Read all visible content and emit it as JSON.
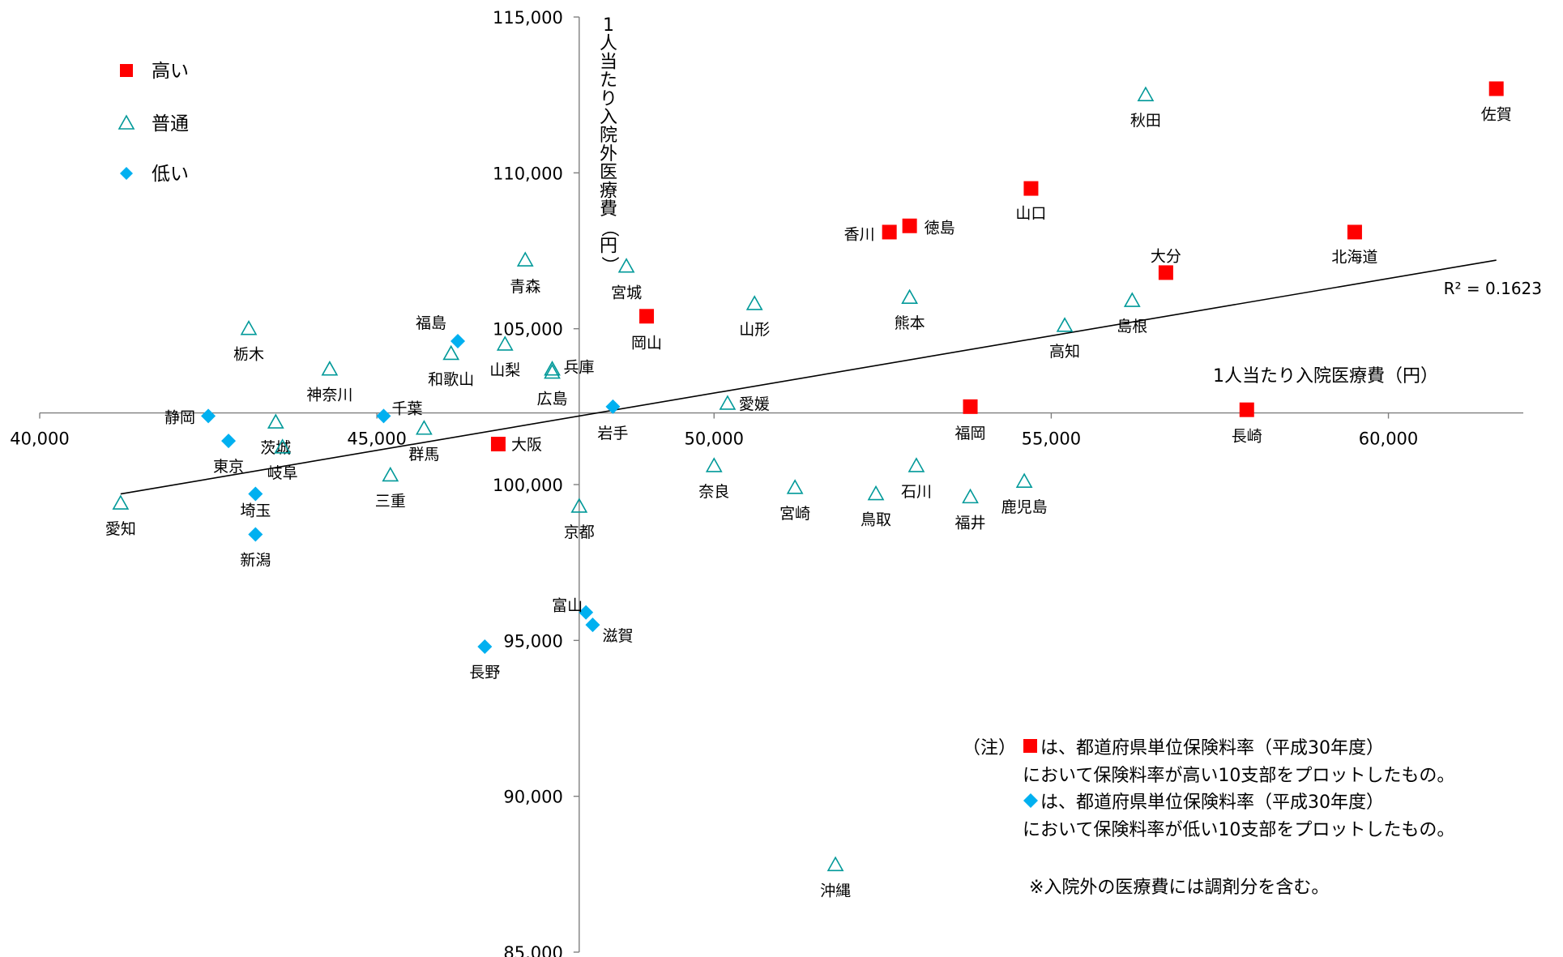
{
  "chart_data": {
    "type": "scatter",
    "title": "",
    "xlabel": "1人当たり入院医療費（円）",
    "ylabel": "1人当たり入院外医療費（円）",
    "xlim": [
      40000,
      62000
    ],
    "ylim": [
      85000,
      115000
    ],
    "x_axis_crosses_y": 102300,
    "y_axis_crosses_x": 48000,
    "x_ticks": [
      "40,000",
      "45,000",
      "50,000",
      "55,000",
      "60,000"
    ],
    "x_tick_values": [
      40000,
      45000,
      50000,
      55000,
      60000
    ],
    "y_ticks": [
      "85,000",
      "90,000",
      "95,000",
      "100,000",
      "105,000",
      "110,000",
      "115,000"
    ],
    "y_tick_values": [
      85000,
      90000,
      95000,
      100000,
      105000,
      110000,
      115000
    ],
    "legend": {
      "position": "top-left",
      "entries": [
        {
          "label": "高い",
          "marker": "square",
          "color": "#ff0000"
        },
        {
          "label": "普通",
          "marker": "triangle",
          "color": "#009999"
        },
        {
          "label": "低い",
          "marker": "diamond",
          "color": "#00b0f0"
        }
      ]
    },
    "trendline": {
      "x": [
        41200,
        61600
      ],
      "y": [
        99700,
        107200
      ],
      "r2_label": "R² = 0.1623"
    },
    "series": [
      {
        "name": "高い",
        "marker": "square",
        "color": "#ff0000",
        "points": [
          {
            "label": "佐賀",
            "x": 61600,
            "y": 112700
          },
          {
            "label": "山口",
            "x": 54700,
            "y": 109500
          },
          {
            "label": "徳島",
            "x": 52900,
            "y": 108300
          },
          {
            "label": "香川",
            "x": 52600,
            "y": 108100
          },
          {
            "label": "北海道",
            "x": 59500,
            "y": 108100
          },
          {
            "label": "大分",
            "x": 56700,
            "y": 106800
          },
          {
            "label": "岡山",
            "x": 49000,
            "y": 105400
          },
          {
            "label": "福岡",
            "x": 53800,
            "y": 102500
          },
          {
            "label": "長崎",
            "x": 57900,
            "y": 102400
          },
          {
            "label": "大阪",
            "x": 46800,
            "y": 101300
          }
        ]
      },
      {
        "name": "普通",
        "marker": "triangle",
        "color": "#009999",
        "points": [
          {
            "label": "秋田",
            "x": 56400,
            "y": 112500
          },
          {
            "label": "青森",
            "x": 47200,
            "y": 107200
          },
          {
            "label": "宮城",
            "x": 48700,
            "y": 107000
          },
          {
            "label": "山形",
            "x": 50600,
            "y": 105800
          },
          {
            "label": "熊本",
            "x": 52900,
            "y": 106000
          },
          {
            "label": "島根",
            "x": 56200,
            "y": 105900
          },
          {
            "label": "栃木",
            "x": 43100,
            "y": 105000
          },
          {
            "label": "高知",
            "x": 55200,
            "y": 105100
          },
          {
            "label": "山梨",
            "x": 46900,
            "y": 104500
          },
          {
            "label": "和歌山",
            "x": 46100,
            "y": 104200
          },
          {
            "label": "神奈川",
            "x": 44300,
            "y": 103700
          },
          {
            "label": "兵庫",
            "x": 47600,
            "y": 103700
          },
          {
            "label": "広島",
            "x": 47600,
            "y": 103600
          },
          {
            "label": "愛媛",
            "x": 50200,
            "y": 102600
          },
          {
            "label": "茨城",
            "x": 43500,
            "y": 102000
          },
          {
            "label": "群馬",
            "x": 45700,
            "y": 101800
          },
          {
            "label": "岐阜",
            "x": 43600,
            "y": 101200
          },
          {
            "label": "奈良",
            "x": 50000,
            "y": 100600
          },
          {
            "label": "石川",
            "x": 53000,
            "y": 100600
          },
          {
            "label": "三重",
            "x": 45200,
            "y": 100300
          },
          {
            "label": "鹿児島",
            "x": 54600,
            "y": 100100
          },
          {
            "label": "宮崎",
            "x": 51200,
            "y": 99900
          },
          {
            "label": "鳥取",
            "x": 52400,
            "y": 99700
          },
          {
            "label": "福井",
            "x": 53800,
            "y": 99600
          },
          {
            "label": "愛知",
            "x": 41200,
            "y": 99400
          },
          {
            "label": "京都",
            "x": 48000,
            "y": 99300
          },
          {
            "label": "沖縄",
            "x": 51800,
            "y": 87800
          }
        ]
      },
      {
        "name": "低い",
        "marker": "diamond",
        "color": "#00b0f0",
        "points": [
          {
            "label": "福島",
            "x": 46200,
            "y": 104600
          },
          {
            "label": "岩手",
            "x": 48500,
            "y": 102500
          },
          {
            "label": "千葉",
            "x": 45100,
            "y": 102200
          },
          {
            "label": "静岡",
            "x": 42500,
            "y": 102200
          },
          {
            "label": "東京",
            "x": 42800,
            "y": 101400
          },
          {
            "label": "埼玉",
            "x": 43200,
            "y": 99700
          },
          {
            "label": "新潟",
            "x": 43200,
            "y": 98400
          },
          {
            "label": "富山",
            "x": 48100,
            "y": 95900
          },
          {
            "label": "滋賀",
            "x": 48200,
            "y": 95500
          },
          {
            "label": "長野",
            "x": 46600,
            "y": 94800
          }
        ]
      }
    ]
  },
  "note": {
    "prefix": "（注）",
    "lines": [
      "は、都道府県単位保険料率（平成30年度）",
      "において保険料率が高い10支部をプロットしたもの。",
      "は、都道府県単位保険料率（平成30年度）",
      "において保険料率が低い10支部をプロットしたもの。",
      "※入院外の医療費には調剤分を含む。"
    ]
  }
}
